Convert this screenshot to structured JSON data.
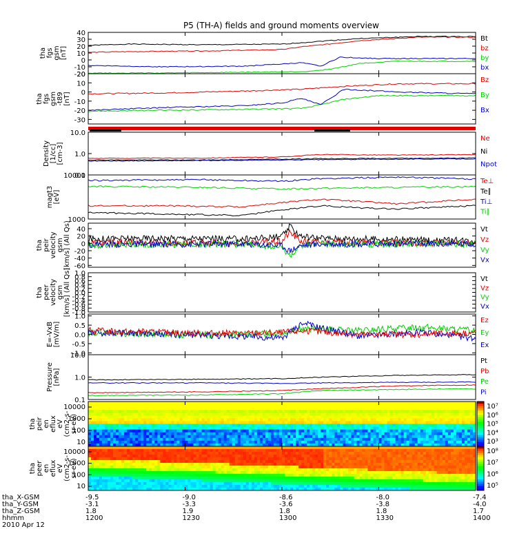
{
  "title": "P5 (TH-A) fields and ground moments overview",
  "colors": {
    "black": "#000000",
    "red": "#e00000",
    "green": "#00d000",
    "blue": "#0000cc"
  },
  "x_axis": {
    "time_ticks": [
      "1200",
      "1230",
      "1300",
      "1330",
      "1400"
    ],
    "rows": [
      {
        "label": "tha_X-GSM",
        "values": [
          "-9.5",
          "-9.0",
          "-8.6",
          "-8.0",
          "-7.4"
        ]
      },
      {
        "label": "tha_Y-GSM",
        "values": [
          "-3.1",
          "-3.3",
          "-3.6",
          "-3.8",
          "-4.0"
        ]
      },
      {
        "label": "tha_Z-GSM",
        "values": [
          "1.8",
          "1.9",
          "1.8",
          "1.8",
          "1.7"
        ]
      },
      {
        "label": "hhmm",
        "values": [
          "1200",
          "1230",
          "1300",
          "1330",
          "1400"
        ]
      }
    ],
    "date": "2010 Apr 12"
  },
  "chart_data": [
    {
      "type": "line",
      "ylabel": [
        "tha",
        "fgs",
        "gsm",
        "[nT]"
      ],
      "ylim": [
        -20,
        40
      ],
      "ticks": [
        "40",
        "30",
        "20",
        "10",
        "0",
        "-10",
        "-20"
      ],
      "legend": [
        {
          "name": "Bt",
          "color": "black"
        },
        {
          "name": "bz",
          "color": "red"
        },
        {
          "name": "by",
          "color": "green"
        },
        {
          "name": "bx",
          "color": "blue"
        }
      ],
      "series": [
        {
          "name": "Bt",
          "color": "black",
          "x": [
            0,
            0.1,
            0.3,
            0.5,
            0.55,
            0.62,
            0.7,
            0.85,
            1.0
          ],
          "y": [
            21,
            23,
            22,
            23,
            25,
            28,
            31,
            34,
            34
          ]
        },
        {
          "name": "bz",
          "color": "red",
          "x": [
            0,
            0.1,
            0.3,
            0.5,
            0.55,
            0.62,
            0.7,
            0.85,
            1.0
          ],
          "y": [
            11,
            12,
            13,
            15,
            19,
            23,
            28,
            33,
            33
          ]
        },
        {
          "name": "by",
          "color": "green",
          "x": [
            0,
            0.2,
            0.4,
            0.55,
            0.6,
            0.64,
            0.7,
            0.8,
            1.0
          ],
          "y": [
            -19,
            -19,
            -18,
            -17,
            -15,
            -12,
            -5,
            -2,
            -2
          ]
        },
        {
          "name": "bx",
          "color": "blue",
          "x": [
            0,
            0.2,
            0.4,
            0.5,
            0.55,
            0.6,
            0.65,
            0.75,
            1.0
          ],
          "y": [
            -8,
            -10,
            -9,
            -6,
            -4,
            -9,
            4,
            2,
            2
          ]
        }
      ]
    },
    {
      "type": "line",
      "ylabel": [
        "tha",
        "fgs",
        "gsm",
        "-t89",
        "[nT]"
      ],
      "ylim": [
        -35,
        20
      ],
      "ticks": [
        "20",
        "10",
        "0",
        "-10",
        "-20",
        "-30"
      ],
      "legend": [
        {
          "name": "Bz",
          "color": "red"
        },
        {
          "name": "By",
          "color": "green"
        },
        {
          "name": "Bx",
          "color": "blue"
        }
      ],
      "series": [
        {
          "name": "Bz",
          "color": "red",
          "x": [
            0,
            0.2,
            0.4,
            0.55,
            0.65,
            0.8,
            1.0
          ],
          "y": [
            -2,
            -1,
            1,
            3,
            6,
            9,
            9
          ]
        },
        {
          "name": "By",
          "color": "green",
          "x": [
            0,
            0.2,
            0.4,
            0.55,
            0.6,
            0.66,
            0.75,
            1.0
          ],
          "y": [
            -21,
            -20,
            -19,
            -18,
            -14,
            -8,
            -4,
            -4
          ]
        },
        {
          "name": "Bx",
          "color": "blue",
          "x": [
            0,
            0.2,
            0.4,
            0.5,
            0.55,
            0.6,
            0.66,
            0.8,
            1.0
          ],
          "y": [
            -20,
            -17,
            -15,
            -12,
            -7,
            -14,
            3,
            0,
            -2
          ]
        }
      ]
    },
    {
      "type": "line",
      "ylabel": [
        "Density",
        "[1/cc]",
        "[cm-3]"
      ],
      "scale": "log",
      "ylim": [
        0.1,
        10
      ],
      "ticks": [
        "10.0",
        "1.0",
        "0.1"
      ],
      "legend": [
        {
          "name": "Ne",
          "color": "red"
        },
        {
          "name": "Ni",
          "color": "black"
        },
        {
          "name": "Npot",
          "color": "blue"
        }
      ],
      "series": [
        {
          "name": "Ne",
          "color": "red",
          "x": [
            0,
            0.3,
            0.5,
            0.6,
            0.8,
            1.0
          ],
          "y": [
            0.6,
            0.62,
            0.7,
            0.9,
            0.85,
            0.9
          ]
        },
        {
          "name": "Ni",
          "color": "black",
          "x": [
            0,
            0.3,
            0.5,
            0.6,
            0.8,
            1.0
          ],
          "y": [
            0.5,
            0.5,
            0.55,
            0.58,
            0.6,
            0.62
          ]
        },
        {
          "name": "Npot",
          "color": "blue",
          "x": [
            0,
            0.3,
            0.5,
            0.6,
            0.8,
            1.0
          ],
          "y": [
            0.45,
            0.47,
            0.5,
            0.52,
            0.55,
            0.57
          ]
        }
      ]
    },
    {
      "type": "line",
      "ylabel": [
        "magt3",
        "[eV]"
      ],
      "scale": "log",
      "ylim": [
        1000,
        10000
      ],
      "ticks": [
        "10000",
        "1000"
      ],
      "legend": [
        {
          "name": "Te⊥",
          "color": "red"
        },
        {
          "name": "Te∥",
          "color": "black"
        },
        {
          "name": "Ti⊥",
          "color": "blue"
        },
        {
          "name": "Ti∥",
          "color": "green"
        }
      ],
      "series": [
        {
          "name": "Ti⊥",
          "color": "blue",
          "x": [
            0,
            0.3,
            0.5,
            0.6,
            0.8,
            1.0
          ],
          "y": [
            7500,
            7800,
            7200,
            8200,
            9000,
            8000
          ]
        },
        {
          "name": "Ti∥",
          "color": "green",
          "x": [
            0,
            0.3,
            0.5,
            0.6,
            0.8,
            1.0
          ],
          "y": [
            5500,
            5200,
            4800,
            5000,
            5200,
            5500
          ]
        },
        {
          "name": "Te⊥",
          "color": "red",
          "x": [
            0,
            0.2,
            0.4,
            0.6,
            0.7,
            0.8,
            1.0
          ],
          "y": [
            2000,
            2000,
            1900,
            2800,
            2500,
            2200,
            2800
          ]
        },
        {
          "name": "Te∥",
          "color": "black",
          "x": [
            0,
            0.2,
            0.4,
            0.6,
            0.7,
            0.8,
            1.0
          ],
          "y": [
            1400,
            1300,
            1200,
            2000,
            1800,
            1700,
            2000
          ]
        }
      ]
    },
    {
      "type": "line",
      "ylabel": [
        "tha",
        "peir",
        "velocity",
        "gsm",
        "[km/s] (All Qs)"
      ],
      "ylim": [
        -65,
        55
      ],
      "ticks": [
        "40",
        "20",
        "0",
        "-20",
        "-40",
        "-60"
      ],
      "legend": [
        {
          "name": "Vt",
          "color": "black"
        },
        {
          "name": "Vz",
          "color": "red"
        },
        {
          "name": "Vy",
          "color": "green"
        },
        {
          "name": "Vx",
          "color": "blue"
        }
      ],
      "series": [
        {
          "name": "Vt",
          "color": "black",
          "x": [
            0,
            0.2,
            0.4,
            0.5,
            0.52,
            0.55,
            0.6,
            0.8,
            1.0
          ],
          "y": [
            12,
            14,
            12,
            18,
            45,
            20,
            14,
            10,
            8
          ]
        },
        {
          "name": "Vz",
          "color": "red",
          "x": [
            0,
            0.2,
            0.4,
            0.5,
            0.52,
            0.55,
            0.6,
            0.8,
            1.0
          ],
          "y": [
            2,
            1,
            0,
            5,
            30,
            5,
            3,
            1,
            0
          ]
        },
        {
          "name": "Vy",
          "color": "green",
          "x": [
            0,
            0.2,
            0.4,
            0.5,
            0.52,
            0.55,
            0.6,
            0.8,
            1.0
          ],
          "y": [
            -4,
            -3,
            -2,
            -10,
            -35,
            -8,
            -3,
            -2,
            -1
          ]
        },
        {
          "name": "Vx",
          "color": "blue",
          "x": [
            0,
            0.2,
            0.4,
            0.5,
            0.52,
            0.55,
            0.6,
            0.8,
            1.0
          ],
          "y": [
            -2,
            -3,
            -1,
            -6,
            -20,
            -5,
            -2,
            -1,
            -1
          ]
        }
      ]
    },
    {
      "type": "line",
      "ylabel": [
        "tha",
        "peer",
        "velocity",
        "gsm",
        "[km/s] (All Qs)"
      ],
      "ylim": [
        -1.0,
        1.0
      ],
      "ticks": [
        "1.0",
        "0.8",
        "0.6",
        "0.4",
        "0.2",
        "0.0",
        "-0.2",
        "-0.4",
        "-0.6",
        "-0.8",
        "-1.0"
      ],
      "legend": [
        {
          "name": "Vt",
          "color": "black"
        },
        {
          "name": "Vz",
          "color": "red"
        },
        {
          "name": "Vy",
          "color": "green"
        },
        {
          "name": "Vx",
          "color": "blue"
        }
      ],
      "series": []
    },
    {
      "type": "line",
      "ylabel": [
        "E=-VxB",
        "[mV/m]"
      ],
      "ylim": [
        -1.1,
        1.1
      ],
      "ticks": [
        "1.0",
        "0.5",
        "0.0",
        "-0.5",
        "-1.0"
      ],
      "legend": [
        {
          "name": "Ez",
          "color": "red"
        },
        {
          "name": "Ey",
          "color": "green"
        },
        {
          "name": "Ex",
          "color": "blue"
        }
      ],
      "series": [
        {
          "name": "Ey",
          "color": "green",
          "x": [
            0,
            0.2,
            0.4,
            0.5,
            0.55,
            0.7,
            0.85,
            1.0
          ],
          "y": [
            0.1,
            0.0,
            0.0,
            0.1,
            0.3,
            0.2,
            0.4,
            0.2
          ]
        },
        {
          "name": "Ex",
          "color": "blue",
          "x": [
            0,
            0.2,
            0.4,
            0.5,
            0.55,
            0.7,
            0.85,
            1.0
          ],
          "y": [
            0.1,
            0.0,
            -0.1,
            -0.2,
            0.6,
            -0.1,
            0.1,
            -0.2
          ]
        },
        {
          "name": "Ez",
          "color": "red",
          "x": [
            0,
            0.2,
            0.4,
            0.5,
            0.55,
            0.7,
            0.85,
            1.0
          ],
          "y": [
            0.2,
            0.1,
            0.05,
            0.1,
            0.2,
            0.0,
            0.0,
            0.1
          ]
        }
      ]
    },
    {
      "type": "line",
      "ylabel": [
        "Pressure",
        "[nPa]"
      ],
      "scale": "log",
      "ylim": [
        0.1,
        10
      ],
      "ticks": [
        "10.0",
        "1.0",
        "0.1"
      ],
      "legend": [
        {
          "name": "Pt",
          "color": "black"
        },
        {
          "name": "Pb",
          "color": "red"
        },
        {
          "name": "Pe",
          "color": "green"
        },
        {
          "name": "Pi",
          "color": "blue"
        }
      ],
      "series": [
        {
          "name": "Pt",
          "color": "black",
          "x": [
            0,
            0.3,
            0.5,
            0.6,
            0.8,
            1.0
          ],
          "y": [
            0.75,
            0.8,
            0.85,
            1.0,
            1.2,
            1.3
          ]
        },
        {
          "name": "Pi",
          "color": "blue",
          "x": [
            0,
            0.3,
            0.5,
            0.6,
            0.8,
            1.0
          ],
          "y": [
            0.55,
            0.55,
            0.52,
            0.55,
            0.58,
            0.6
          ]
        },
        {
          "name": "Pb",
          "color": "red",
          "x": [
            0,
            0.3,
            0.5,
            0.6,
            0.8,
            1.0
          ],
          "y": [
            0.2,
            0.22,
            0.25,
            0.3,
            0.4,
            0.45
          ]
        },
        {
          "name": "Pe",
          "color": "green",
          "x": [
            0,
            0.3,
            0.5,
            0.6,
            0.8,
            1.0
          ],
          "y": [
            0.15,
            0.16,
            0.18,
            0.25,
            0.28,
            0.3
          ]
        }
      ]
    },
    {
      "type": "heatmap",
      "ylabel": [
        "tha",
        "peir",
        "en",
        "eflux",
        "eV",
        "(cm2-s-",
        "sr-eV)"
      ],
      "ticks": [
        "10000",
        "1000",
        "100",
        "10"
      ],
      "colorbar": [
        "10⁷",
        "10⁶",
        "10⁵",
        "10⁴",
        "10³"
      ]
    },
    {
      "type": "heatmap",
      "ylabel": [
        "tha",
        "peer",
        "en",
        "eflux",
        "eV",
        "(cm2-s-",
        "sr-eV)"
      ],
      "ticks": [
        "10000",
        "1000",
        "100",
        "10"
      ],
      "colorbar": [
        "10⁸",
        "10⁷",
        "10⁶",
        "10⁵"
      ]
    }
  ]
}
